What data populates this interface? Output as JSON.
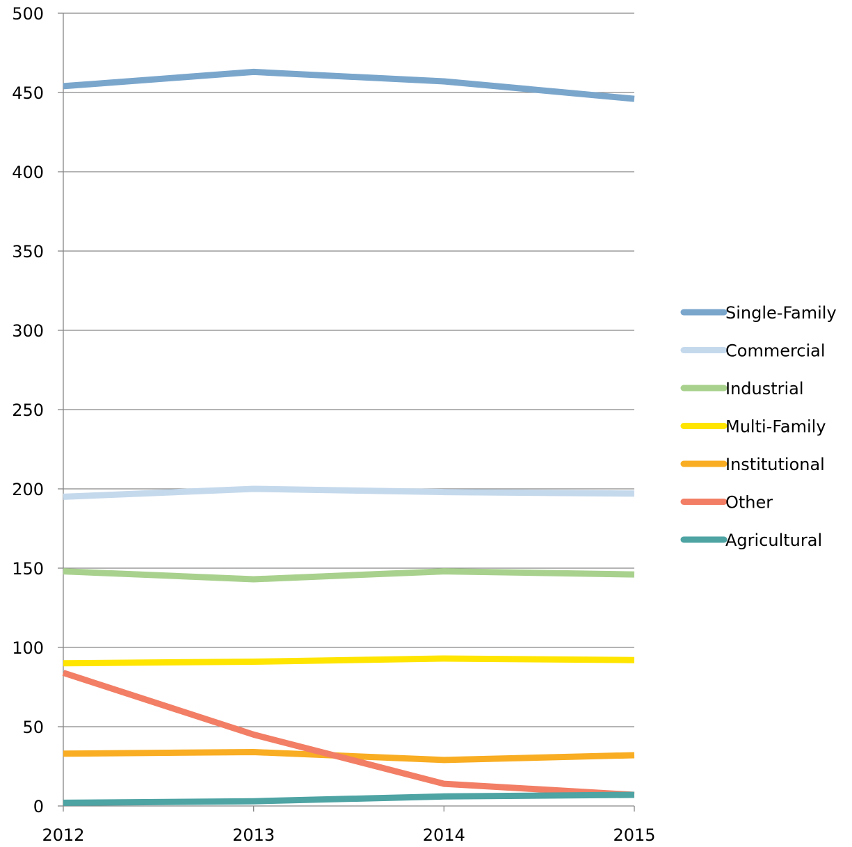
{
  "chart_data": {
    "type": "line",
    "title": "",
    "xlabel": "",
    "ylabel": "",
    "categories": [
      "2012",
      "2013",
      "2014",
      "2015"
    ],
    "y_ticks": [
      "0",
      "50",
      "100",
      "150",
      "200",
      "250",
      "300",
      "350",
      "400",
      "450",
      "500"
    ],
    "ylim": [
      0,
      500
    ],
    "grid": "horizontal",
    "legend_position": "right",
    "series": [
      {
        "name": "Single-Family",
        "color": "#7aa6cc",
        "values": [
          454,
          463,
          457,
          446
        ]
      },
      {
        "name": "Commercial",
        "color": "#c5d9ec",
        "values": [
          195,
          200,
          198,
          197
        ]
      },
      {
        "name": "Industrial",
        "color": "#a9d18e",
        "values": [
          148,
          143,
          148,
          146
        ]
      },
      {
        "name": "Multi-Family",
        "color": "#ffe500",
        "values": [
          90,
          91,
          93,
          92
        ]
      },
      {
        "name": "Institutional",
        "color": "#f9ad22",
        "values": [
          33,
          34,
          29,
          32
        ]
      },
      {
        "name": "Other",
        "color": "#f27e65",
        "values": [
          84,
          45,
          14,
          7
        ]
      },
      {
        "name": "Agricultural",
        "color": "#4ea3a3",
        "values": [
          2,
          3,
          6,
          7
        ]
      }
    ]
  }
}
